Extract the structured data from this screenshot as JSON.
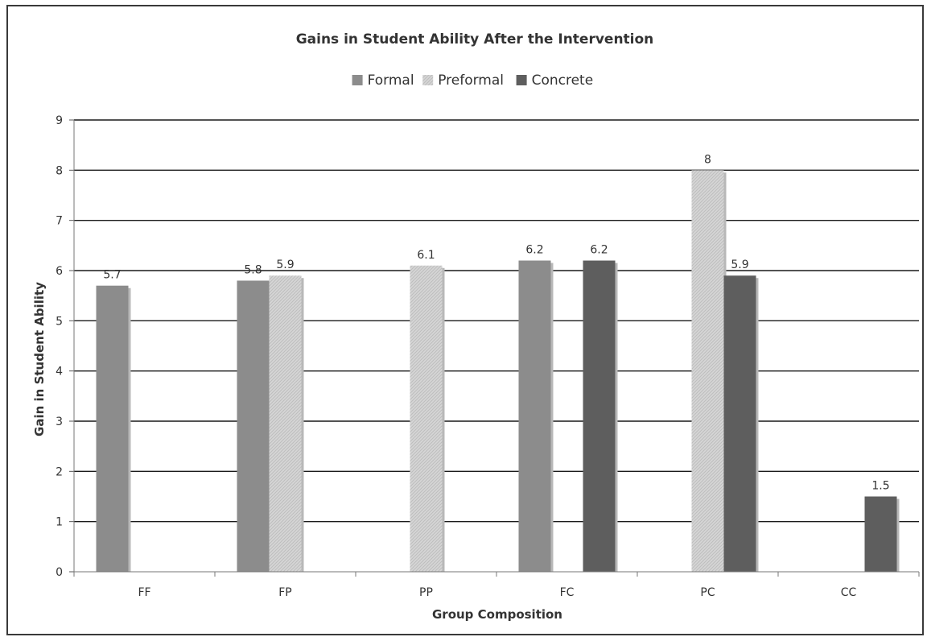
{
  "chart_data": {
    "type": "bar",
    "title": "Gains in Student Ability After the Intervention",
    "xlabel": "Group Composition",
    "ylabel": "Gain in Student Ability",
    "categories": [
      "FF",
      "FP",
      "PP",
      "FC",
      "PC",
      "CC"
    ],
    "ylim": [
      0,
      9
    ],
    "yticks": [
      "0",
      "1",
      "2",
      "3",
      "4",
      "5",
      "6",
      "7",
      "8",
      "9"
    ],
    "legend_position": "top-center",
    "grid": true,
    "series": [
      {
        "name": "Formal",
        "color": "#8c8c8c",
        "values": [
          5.7,
          5.8,
          null,
          6.2,
          null,
          null
        ],
        "labels": [
          "5.7",
          "5.8",
          "",
          "6.2",
          "",
          ""
        ]
      },
      {
        "name": "Preformal",
        "color": "#d2d2d2",
        "hatched": true,
        "values": [
          null,
          5.9,
          6.1,
          null,
          8,
          null
        ],
        "labels": [
          "",
          "5.9",
          "6.1",
          "",
          "8",
          ""
        ]
      },
      {
        "name": "Concrete",
        "color": "#5e5e5e",
        "values": [
          null,
          null,
          null,
          6.2,
          5.9,
          1.5
        ],
        "labels": [
          "",
          "",
          "",
          "6.2",
          "5.9",
          "1.5"
        ]
      }
    ]
  }
}
